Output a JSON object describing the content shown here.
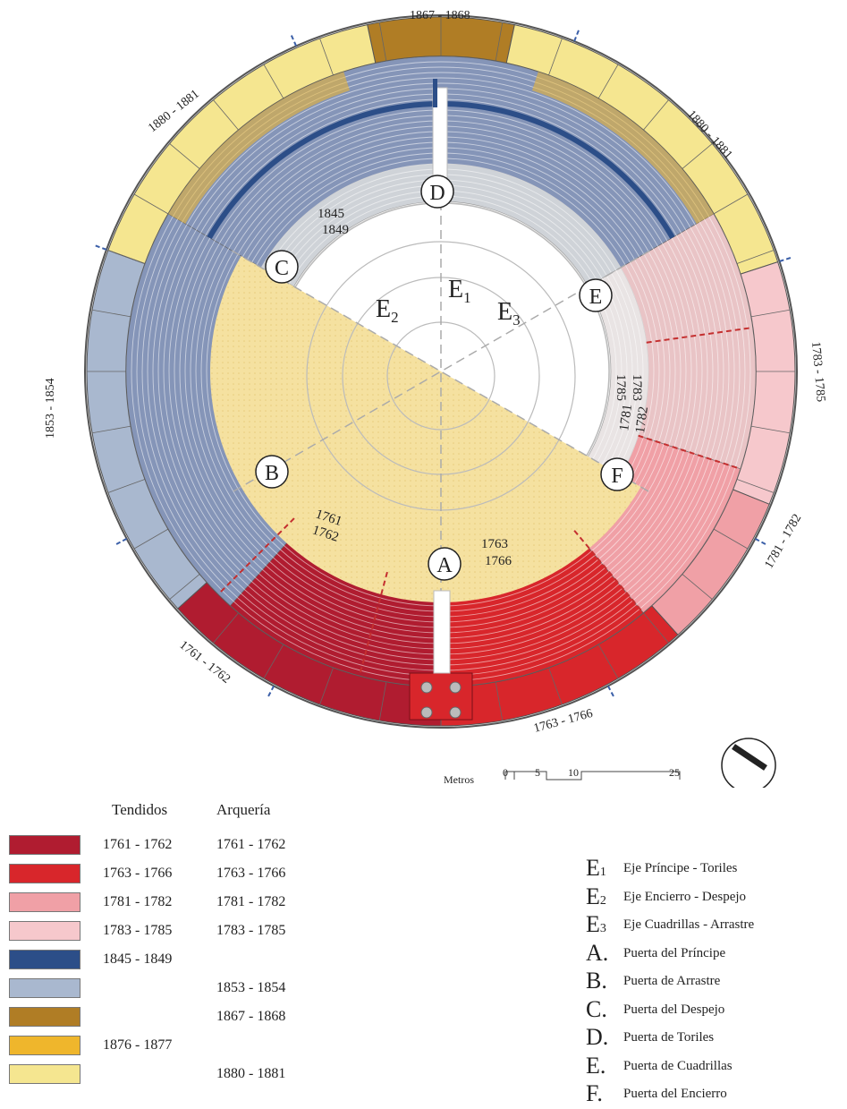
{
  "colors": {
    "c1761": "#b01c30",
    "c1763": "#d8262b",
    "c1781": "#f0a0a6",
    "c1783": "#f6c8cc",
    "c1845": "#2c4e88",
    "c1853": "#a9b8cf",
    "c1867": "#b07d25",
    "c1876": "#efb62c",
    "c1880": "#f5e690",
    "plaza": "#f5e1a0",
    "tendido_blue": "#8595b8",
    "tendido_gray": "#cfd3d8",
    "sombra_pink": "#e9c4c6"
  },
  "plan": {
    "ring_labels": {
      "top": "1867 - 1868",
      "upper_left": "1880 - 1881",
      "upper_right": "1880 - 1881",
      "left": "1853 - 1854",
      "right_upper": "1783 - 1785",
      "right_lower": "1781 - 1782",
      "lower_left": "1761 - 1762",
      "lower_right": "1763 - 1766"
    },
    "inner_labels": {
      "d_years_1": "1845",
      "d_years_2": "1849",
      "b_years_1": "1761",
      "b_years_2": "1762",
      "a_years_1": "1763",
      "a_years_2": "1766",
      "e_years_1": "1783",
      "e_years_2": "1785",
      "f_years_1": "1781",
      "f_years_2": "1782"
    },
    "gates": {
      "a": "A",
      "b": "B",
      "c": "C",
      "d": "D",
      "e": "E",
      "f": "F"
    },
    "axes": {
      "e1": {
        "letter": "E",
        "sub": "1"
      },
      "e2": {
        "letter": "E",
        "sub": "2"
      },
      "e3": {
        "letter": "E",
        "sub": "3"
      }
    },
    "scale": {
      "label": "Metros",
      "ticks": [
        "0",
        "5",
        "10",
        "25"
      ]
    }
  },
  "legend": {
    "header_tendidos": "Tendidos",
    "header_arqueria": "Arquería",
    "rows": [
      {
        "color": "#b01c30",
        "tendidos": "1761 - 1762",
        "arqueria": "1761 - 1762"
      },
      {
        "color": "#d8262b",
        "tendidos": "1763 - 1766",
        "arqueria": "1763 - 1766"
      },
      {
        "color": "#f0a0a6",
        "tendidos": "1781 - 1782",
        "arqueria": "1781 - 1782"
      },
      {
        "color": "#f6c8cc",
        "tendidos": "1783 - 1785",
        "arqueria": "1783 - 1785"
      },
      {
        "color": "#2c4e88",
        "tendidos": "1845 - 1849",
        "arqueria": ""
      },
      {
        "color": "#a9b8cf",
        "tendidos": "",
        "arqueria": "1853 - 1854"
      },
      {
        "color": "#b07d25",
        "tendidos": "",
        "arqueria": "1867 - 1868"
      },
      {
        "color": "#efb62c",
        "tendidos": "1876 - 1877",
        "arqueria": ""
      },
      {
        "color": "#f5e690",
        "tendidos": "",
        "arqueria": "1880 - 1881"
      }
    ]
  },
  "key": [
    {
      "letter": "E",
      "sub": "1",
      "text": "Eje Príncipe - Toriles"
    },
    {
      "letter": "E",
      "sub": "2",
      "text": "Eje Encierro - Despejo"
    },
    {
      "letter": "E",
      "sub": "3",
      "text": "Eje Cuadrillas - Arrastre"
    },
    {
      "letter": "A.",
      "sub": "",
      "text": "Puerta del Príncipe"
    },
    {
      "letter": "B.",
      "sub": "",
      "text": "Puerta de Arrastre"
    },
    {
      "letter": "C.",
      "sub": "",
      "text": "Puerta del Despejo"
    },
    {
      "letter": "D.",
      "sub": "",
      "text": "Puerta de Toriles"
    },
    {
      "letter": "E.",
      "sub": "",
      "text": "Puerta de Cuadrillas"
    },
    {
      "letter": "F.",
      "sub": "",
      "text": "Puerta del Encierro"
    }
  ]
}
